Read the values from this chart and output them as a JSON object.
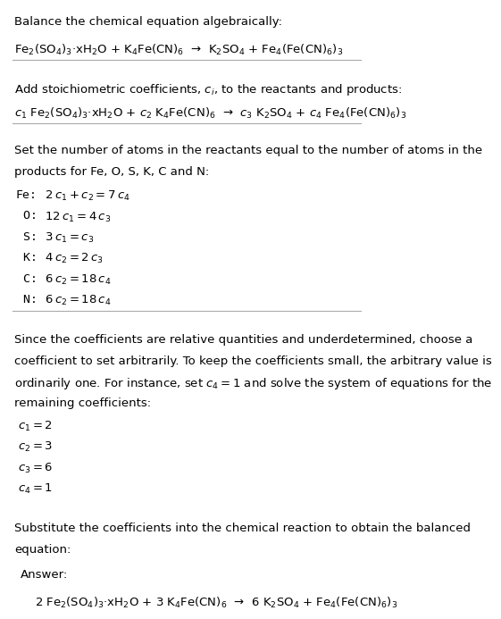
{
  "background_color": "#ffffff",
  "text_color": "#000000",
  "answer_box_color": "#e8f4f8",
  "answer_box_edge_color": "#7ab8d4",
  "title": "Balance the chemical equation algebraically:",
  "eq1": "Fe$_2$(SO$_4$)$_3$·xH$_2$O + K$_4$Fe(CN)$_6$  →  K$_2$SO$_4$ + Fe$_4$(Fe(CN)$_6$)$_3$",
  "add_coeff_label": "Add stoichiometric coefficients, $c_i$, to the reactants and products:",
  "eq2": "$c_1$ Fe$_2$(SO$_4$)$_3$·xH$_2$O + $c_2$ K$_4$Fe(CN)$_6$  →  $c_3$ K$_2$SO$_4$ + $c_4$ Fe$_4$(Fe(CN)$_6$)$_3$",
  "set_atoms_text": "Set the number of atoms in the reactants equal to the number of atoms in the\nproducts for Fe, O, S, K, C and N:",
  "equations": [
    [
      "Fe:",
      "  $2\\,c_1 + c_2 = 7\\,c_4$"
    ],
    [
      " O:",
      "  $12\\,c_1 = 4\\,c_3$"
    ],
    [
      " S:",
      "  $3\\,c_1 = c_3$"
    ],
    [
      " K:",
      "  $4\\,c_2 = 2\\,c_3$"
    ],
    [
      " C:",
      "  $6\\,c_2 = 18\\,c_4$"
    ],
    [
      " N:",
      "  $6\\,c_2 = 18\\,c_4$"
    ]
  ],
  "since_text": "Since the coefficients are relative quantities and underdetermined, choose a\ncoefficient to set arbitrarily. To keep the coefficients small, the arbitrary value is\nordinarily one. For instance, set $c_4 = 1$ and solve the system of equations for the\nremaining coefficients:",
  "solution": [
    "$c_1 = 2$",
    "$c_2 = 3$",
    "$c_3 = 6$",
    "$c_4 = 1$"
  ],
  "substitute_text": "Substitute the coefficients into the chemical reaction to obtain the balanced\nequation:",
  "answer_label": "Answer:",
  "answer_eq": "2 Fe$_2$(SO$_4$)$_3$·xH$_2$O + 3 K$_4$Fe(CN)$_6$  →  6 K$_2$SO$_4$ + Fe$_4$(Fe(CN)$_6$)$_3$"
}
